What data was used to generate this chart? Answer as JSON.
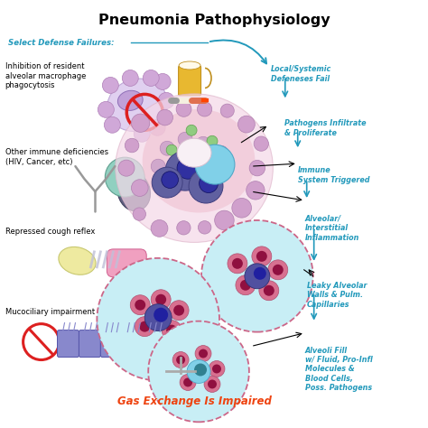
{
  "title": "Pneumonia Pathophysiology",
  "title_fontsize": 11.5,
  "title_fontweight": "bold",
  "bg_color": "#ffffff",
  "cyan_color": "#2299BB",
  "orange_color": "#EE4411",
  "select_defense_label": "Select Defense Failures:",
  "left_items": [
    "Inhibition of resident\nalveolar macrophage\nphagocytosis",
    "Other immune deficiencies\n(HIV, Cancer, etc)",
    "Repressed cough reflex",
    "Mucociliary impairment"
  ],
  "right_items": [
    "Local/Systemic\nDefeneses Fail",
    "Pathogens Infiltrate\n& Proliferate",
    "Immune\nSystem Triggered",
    "Alveolar/\nInterstitial\nInflammation",
    "Leaky Alveolar\nWalls & Pulm.\nCapillaries",
    "Alveoli Fill\nw/ Fluid, Pro-Infl\nMolecules &\nBlood Cells,\nPoss. Pathogens"
  ],
  "gas_exchange_text": "Gas Exchange Is Impaired"
}
